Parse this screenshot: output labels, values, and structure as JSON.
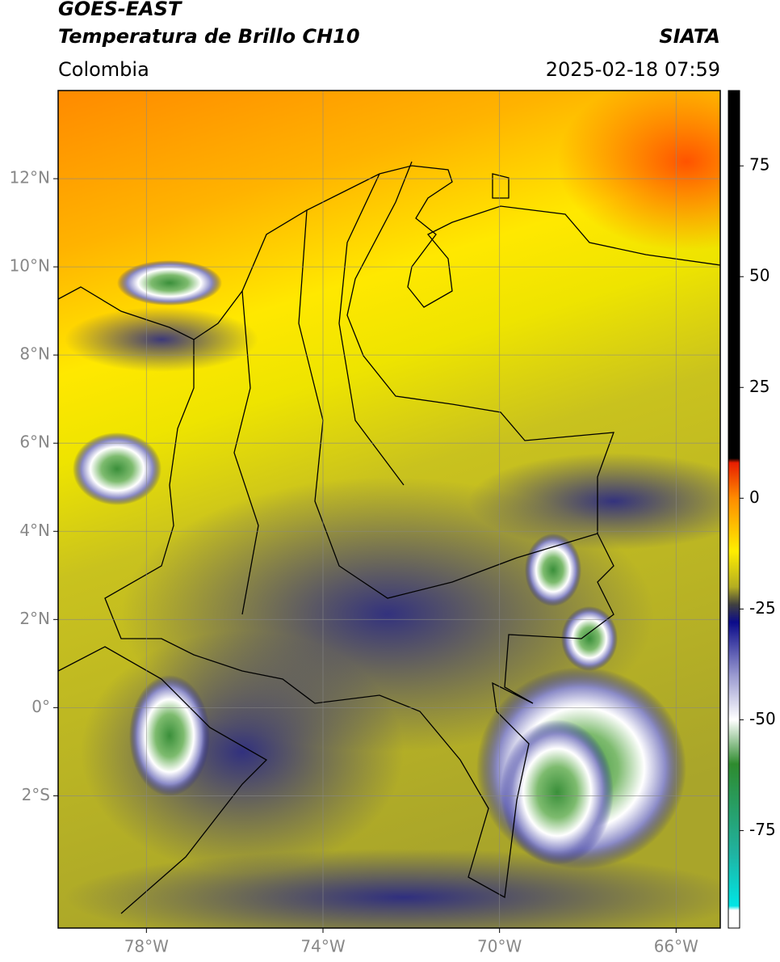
{
  "header": {
    "title_line1": "GOES-EAST",
    "title_line2": "Temperatura de Brillo CH10",
    "source": "SIATA",
    "region": "Colombia",
    "datetime": "2025-02-18 07:59"
  },
  "map": {
    "lonlim": [
      -80,
      -65
    ],
    "latlim": [
      -5,
      14
    ],
    "lat_ticks": [
      {
        "value": 12,
        "label": "12°N"
      },
      {
        "value": 10,
        "label": "10°N"
      },
      {
        "value": 8,
        "label": "8°N"
      },
      {
        "value": 6,
        "label": "6°N"
      },
      {
        "value": 4,
        "label": "4°N"
      },
      {
        "value": 2,
        "label": "2°N"
      },
      {
        "value": 0,
        "label": "0°"
      },
      {
        "value": -2,
        "label": "2°S"
      }
    ],
    "lon_ticks": [
      {
        "value": -78,
        "label": "78°W"
      },
      {
        "value": -74,
        "label": "74°W"
      },
      {
        "value": -70,
        "label": "70°W"
      },
      {
        "value": -66,
        "label": "66°W"
      }
    ],
    "grid": true
  },
  "colorbar": {
    "lim": [
      -97,
      92
    ],
    "ticks": [
      75,
      50,
      25,
      0,
      -25,
      -50,
      -75
    ],
    "stops": [
      {
        "value": 92,
        "color": "#000000"
      },
      {
        "value": 9,
        "color": "#000000"
      },
      {
        "value": 8,
        "color": "#e81e00"
      },
      {
        "value": 0,
        "color": "#ff8c00"
      },
      {
        "value": -12,
        "color": "#ffee00"
      },
      {
        "value": -20,
        "color": "#b4ad22"
      },
      {
        "value": -24,
        "color": "#404040"
      },
      {
        "value": -28,
        "color": "#0b0b8a"
      },
      {
        "value": -40,
        "color": "#9a9ad0"
      },
      {
        "value": -50,
        "color": "#ffffff"
      },
      {
        "value": -60,
        "color": "#2e8b2e"
      },
      {
        "value": -80,
        "color": "#20b2a0"
      },
      {
        "value": -92,
        "color": "#00e5e5"
      },
      {
        "value": -93,
        "color": "#ffffff"
      },
      {
        "value": -97,
        "color": "#ffffff"
      }
    ]
  }
}
